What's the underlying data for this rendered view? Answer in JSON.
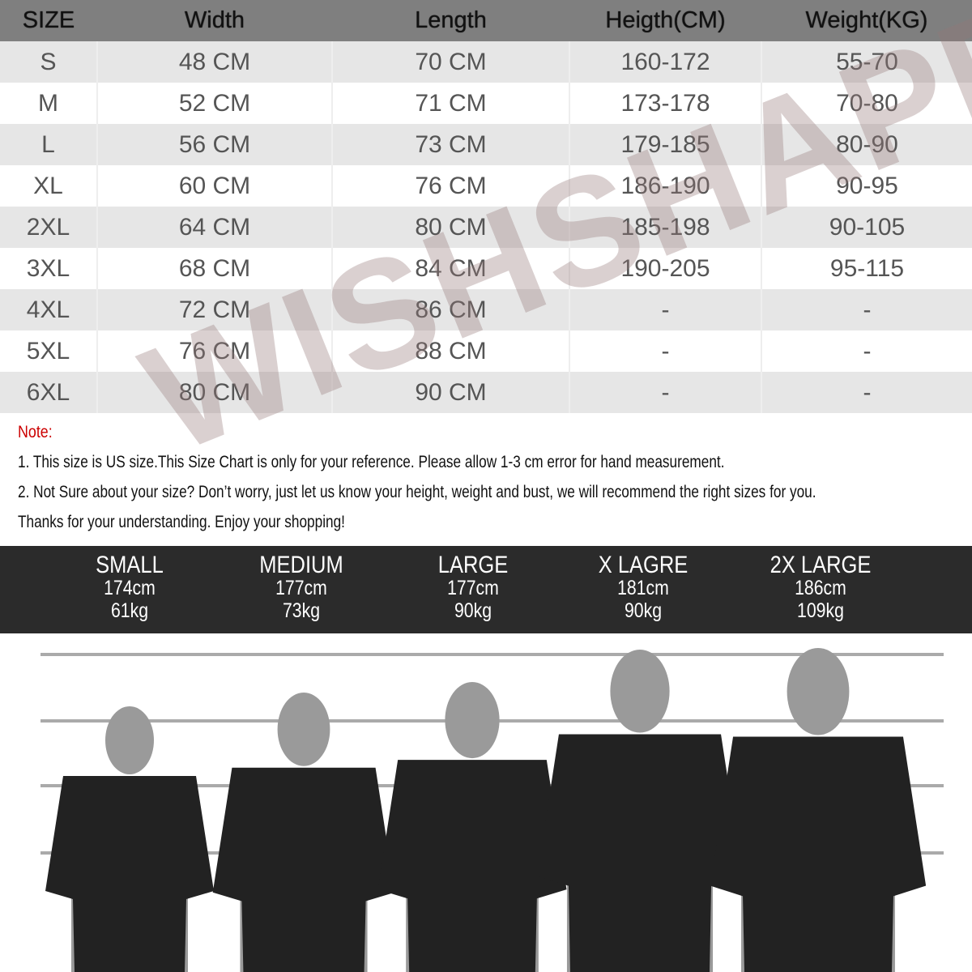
{
  "table": {
    "headers": [
      "SIZE",
      "Width",
      "Length",
      "Heigth(CM)",
      "Weight(KG)"
    ],
    "rows": [
      [
        "S",
        "48 CM",
        "70 CM",
        "160-172",
        "55-70"
      ],
      [
        "M",
        "52 CM",
        "71 CM",
        "173-178",
        "70-80"
      ],
      [
        "L",
        "56 CM",
        "73 CM",
        "179-185",
        "80-90"
      ],
      [
        "XL",
        "60 CM",
        "76 CM",
        "186-190",
        "90-95"
      ],
      [
        "2XL",
        "64 CM",
        "80 CM",
        "185-198",
        "90-105"
      ],
      [
        "3XL",
        "68 CM",
        "84 CM",
        "190-205",
        "95-115"
      ],
      [
        "4XL",
        "72 CM",
        "86 CM",
        "-",
        "-"
      ],
      [
        "5XL",
        "76 CM",
        "88 CM",
        "-",
        "-"
      ],
      [
        "6XL",
        "80 CM",
        "90 CM",
        "-",
        "-"
      ]
    ]
  },
  "notes": {
    "title": "Note:",
    "lines": [
      "1. This size is US size.This Size Chart is only for your reference. Please allow 1-3 cm error for hand measurement.",
      "2. Not Sure about your size? Don’t worry, just let us know your height, weight and bust, we will recommend the right sizes for you.",
      "Thanks for your understanding. Enjoy your shopping!"
    ]
  },
  "models": [
    {
      "size": "SMALL",
      "height": "174cm",
      "weight": "61kg"
    },
    {
      "size": "MEDIUM",
      "height": "177cm",
      "weight": "73kg"
    },
    {
      "size": "LARGE",
      "height": "177cm",
      "weight": "90kg"
    },
    {
      "size": "X LAGRE",
      "height": "181cm",
      "weight": "90kg"
    },
    {
      "size": "2X LARGE",
      "height": "186cm",
      "weight": "109kg"
    }
  ],
  "watermark": "WISHSHAPE",
  "colors": {
    "header": "#7f7f7f",
    "row_alt": "#e6e6e6",
    "note_title": "#cc0000",
    "band": "#2b2b2b",
    "shirt": "#222222",
    "skin": "#9a9a9a"
  }
}
